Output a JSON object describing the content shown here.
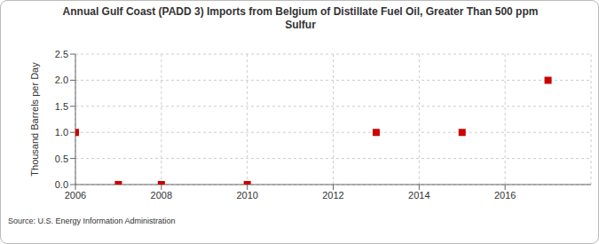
{
  "chart_data": {
    "type": "scatter",
    "title": "Annual Gulf Coast (PADD 3) Imports from Belgium of Distillate Fuel Oil, Greater Than 500 ppm Sulfur",
    "y_label": "Thousand Barrels per Day",
    "source": "Source: U.S. Energy Information Administration",
    "x": [
      2006,
      2007,
      2008,
      2010,
      2013,
      2015,
      2017
    ],
    "values": [
      1,
      0,
      0,
      0,
      1,
      1,
      2
    ],
    "color": "#cc0000",
    "marker": "square",
    "xlim": [
      2006,
      2018
    ],
    "xticks": [
      2006,
      2008,
      2010,
      2012,
      2014,
      2016
    ],
    "ylim": [
      0,
      2.5
    ],
    "yticks": [
      {
        "value": 0,
        "label": "0.0"
      },
      {
        "value": 0.5,
        "label": "0.5"
      },
      {
        "value": 1,
        "label": "1.0"
      },
      {
        "value": 1.5,
        "label": "1.5"
      },
      {
        "value": 2,
        "label": "2.0"
      },
      {
        "value": 2.5,
        "label": "2.5"
      }
    ],
    "grid": true
  }
}
